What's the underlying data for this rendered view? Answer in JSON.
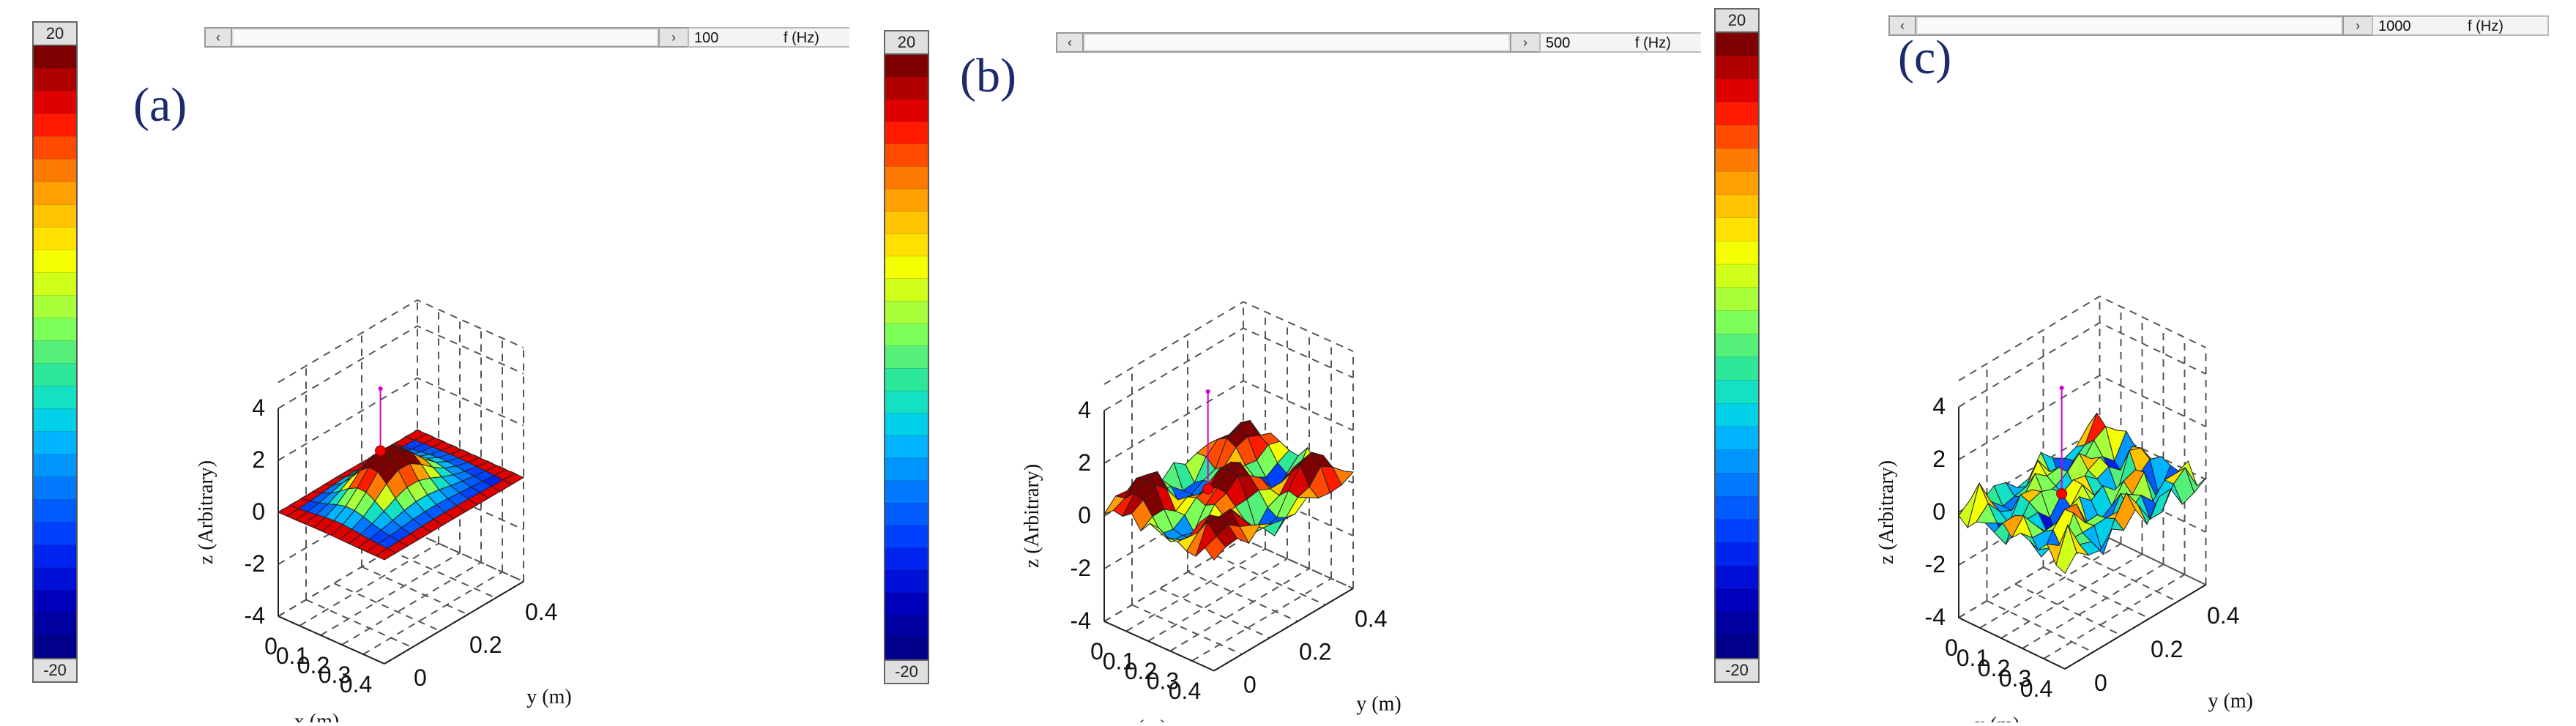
{
  "colorbar": {
    "max_label": "20",
    "min_label": "-20",
    "colors": [
      "#7f0000",
      "#b00000",
      "#df0000",
      "#ff1a00",
      "#ff4a00",
      "#ff7a00",
      "#ffa000",
      "#ffc300",
      "#ffe100",
      "#f4ff00",
      "#d0ff1a",
      "#a8ff3a",
      "#7dff5a",
      "#55f07a",
      "#2ee89a",
      "#14e0c4",
      "#00d0e8",
      "#00b4ff",
      "#0096ff",
      "#0078ff",
      "#005cff",
      "#0040ff",
      "#0024f0",
      "#0010d6",
      "#0000bc",
      "#0000a0",
      "#00008a"
    ]
  },
  "axes": {
    "z_label": "z (Arbitrary)",
    "x_label": "x (m)",
    "y_label": "y (m)",
    "z_ticks": [
      "4",
      "2",
      "0",
      "-2",
      "-4"
    ],
    "x_ticks": [
      "0",
      "0.1",
      "0.2",
      "0.3",
      "0.4"
    ],
    "y_ticks": [
      "0",
      "0.2",
      "0.4"
    ]
  },
  "panels": [
    {
      "tag": "(a)",
      "frequency": "100",
      "freq_unit": "f (Hz)",
      "pattern": "mode1"
    },
    {
      "tag": "(b)",
      "frequency": "500",
      "freq_unit": "f (Hz)",
      "pattern": "mode2"
    },
    {
      "tag": "(c)",
      "frequency": "1000",
      "freq_unit": "f (Hz)",
      "pattern": "mode3"
    }
  ],
  "scrollbar_arrows": {
    "left": "‹",
    "right": "›"
  }
}
